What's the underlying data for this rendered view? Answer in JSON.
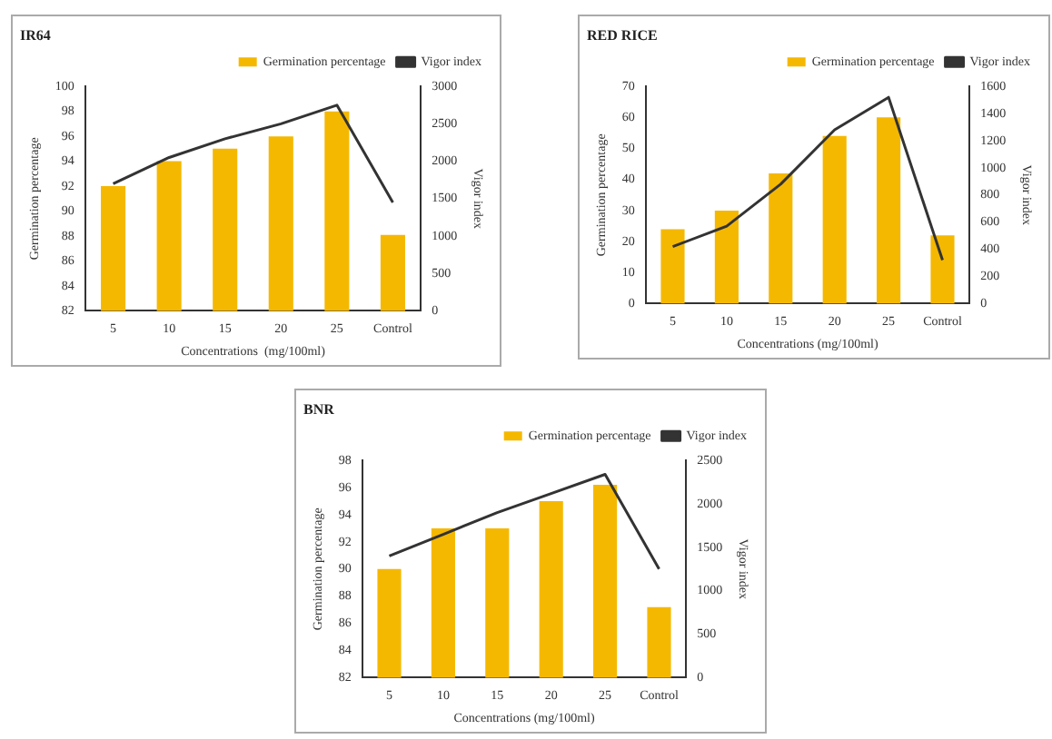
{
  "chart_data": [
    {
      "type": "bar",
      "title": "IR64",
      "categories": [
        "5",
        "10",
        "15",
        "20",
        "25",
        "Control"
      ],
      "series": [
        {
          "name": "Germination percentage",
          "color": "#f5b800",
          "values": [
            92,
            94,
            95,
            96,
            98,
            88.1
          ]
        },
        {
          "name": "Vigor index",
          "type": "line",
          "axis": "y2",
          "color": "#333333",
          "values": [
            1700,
            2050,
            2300,
            2500,
            2750,
            1450
          ]
        }
      ],
      "xlabel": "Concentrations  (mg/100ml)",
      "ylabel": "Germination percentage",
      "y2label": "Vigor index",
      "ylim": [
        82,
        100
      ],
      "yticks": [
        82,
        84,
        86,
        88,
        90,
        92,
        94,
        96,
        98,
        100
      ],
      "y2lim": [
        0,
        3000
      ],
      "y2ticks": [
        0,
        500,
        1000,
        1500,
        2000,
        2500,
        3000
      ],
      "legend": "top right",
      "marker": "none",
      "grid": false
    },
    {
      "type": "bar",
      "title": "RED RICE",
      "categories": [
        "5",
        "10",
        "15",
        "20",
        "25",
        "Control"
      ],
      "series": [
        {
          "name": "Germination percentage",
          "color": "#f5b800",
          "values": [
            24,
            30,
            42,
            54,
            60,
            22
          ]
        },
        {
          "name": "Vigor index",
          "type": "line",
          "axis": "y2",
          "color": "#333333",
          "values": [
            420,
            570,
            880,
            1280,
            1520,
            320
          ]
        }
      ],
      "xlabel": "Concentrations (mg/100ml)",
      "ylabel": "Germination percentage",
      "y2label": "Vigor index",
      "ylim": [
        0,
        70
      ],
      "yticks": [
        0,
        10,
        20,
        30,
        40,
        50,
        60,
        70
      ],
      "y2lim": [
        0,
        1600
      ],
      "y2ticks": [
        0,
        200,
        400,
        600,
        800,
        1000,
        1200,
        1400,
        1600
      ],
      "legend": "top right",
      "marker": "none",
      "grid": false
    },
    {
      "type": "bar",
      "title": "BNR",
      "categories": [
        "5",
        "10",
        "15",
        "20",
        "25",
        "Control"
      ],
      "series": [
        {
          "name": "Germination percentage",
          "color": "#f5b800",
          "values": [
            90,
            93,
            93,
            95,
            96.2,
            87.2
          ]
        },
        {
          "name": "Vigor index",
          "type": "line",
          "axis": "y2",
          "color": "#333333",
          "values": [
            1400,
            1650,
            1900,
            2120,
            2340,
            1250
          ]
        }
      ],
      "xlabel": "Concentrations (mg/100ml)",
      "ylabel": "Germination percentage",
      "y2label": "Vigor index",
      "ylim": [
        82,
        98
      ],
      "yticks": [
        82,
        84,
        86,
        88,
        90,
        92,
        94,
        96,
        98
      ],
      "y2lim": [
        0,
        2500
      ],
      "y2ticks": [
        0,
        500,
        1000,
        1500,
        2000,
        2500
      ],
      "legend": "top right",
      "marker": "none",
      "grid": false
    }
  ]
}
